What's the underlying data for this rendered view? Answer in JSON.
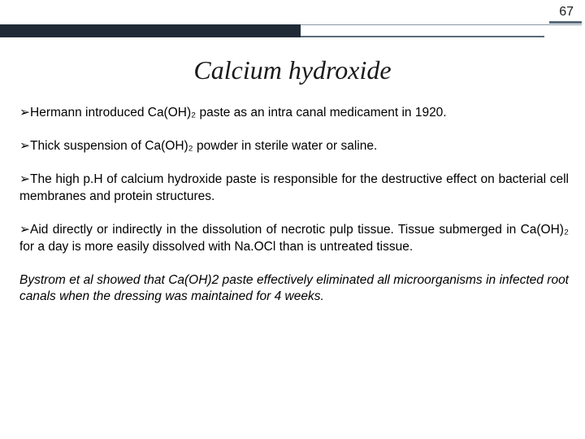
{
  "page_number": "67",
  "title": "Calcium hydroxide",
  "bullet_glyph": "➢",
  "colors": {
    "band_dark": "#1f2a36",
    "rule_gray": "#5a6b7a",
    "thin_gray": "#8a98a5",
    "text": "#000000",
    "background": "#ffffff"
  },
  "bullets": [
    "Hermann introduced Ca(OH)₂ paste as an intra canal medicament in 1920.",
    "Thick suspension of Ca(OH)₂ powder in sterile water or saline.",
    "The high p.H of calcium hydroxide paste is responsible for the destructive effect on bacterial cell membranes and protein structures.",
    "Aid directly or indirectly in the dissolution of necrotic pulp tissue. Tissue submerged in Ca(OH)₂ for a day is more easily dissolved with Na.OCl than is untreated tissue."
  ],
  "closing_para": "Bystrom et al showed that  Ca(OH)2 paste effectively eliminated all microorganisms in infected root canals when the dressing was maintained for 4 weeks."
}
